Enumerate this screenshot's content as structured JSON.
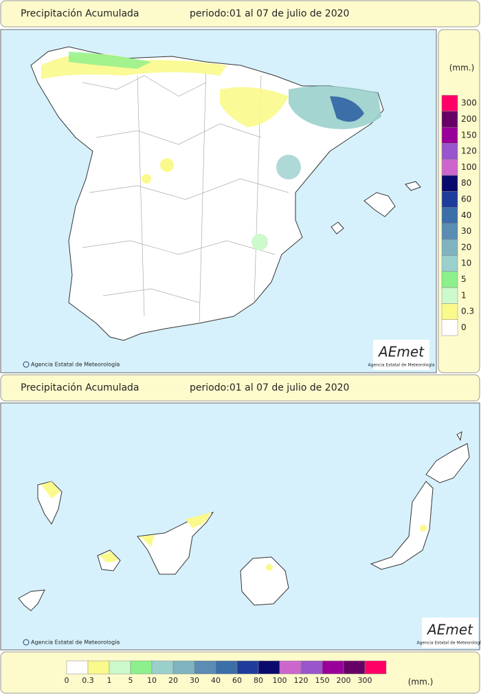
{
  "top_panel": {
    "title": "Precipitación Acumulada",
    "period": "periodo:01 al 07 de julio de 2020",
    "copyright": "Agencia Estatal de Meteorología"
  },
  "bottom_panel": {
    "title": "Precipitación Acumulada",
    "period": "periodo:01 al 07 de julio de 2020",
    "copyright": "Agencia Estatal de Meteorología"
  },
  "logo": {
    "text": "AEmet",
    "subtitle": "Agencia Estatal de Meteorología"
  },
  "legend": {
    "unit": "(mm.)",
    "classes": [
      {
        "value": 0,
        "color": "#ffffff"
      },
      {
        "value": 0.3,
        "color": "#fafa8c"
      },
      {
        "value": 1,
        "color": "#ccfacc"
      },
      {
        "value": 5,
        "color": "#8cf08c"
      },
      {
        "value": 10,
        "color": "#9ad0cc"
      },
      {
        "value": 20,
        "color": "#7fb3c0"
      },
      {
        "value": 30,
        "color": "#5a8cb4"
      },
      {
        "value": 40,
        "color": "#3c6ea8"
      },
      {
        "value": 60,
        "color": "#1e3c9c"
      },
      {
        "value": 80,
        "color": "#0a0a6e"
      },
      {
        "value": 100,
        "color": "#cc66cc"
      },
      {
        "value": 120,
        "color": "#9955cc"
      },
      {
        "value": 150,
        "color": "#990099"
      },
      {
        "value": 200,
        "color": "#660066"
      },
      {
        "value": 300,
        "color": "#ff0066"
      }
    ]
  }
}
